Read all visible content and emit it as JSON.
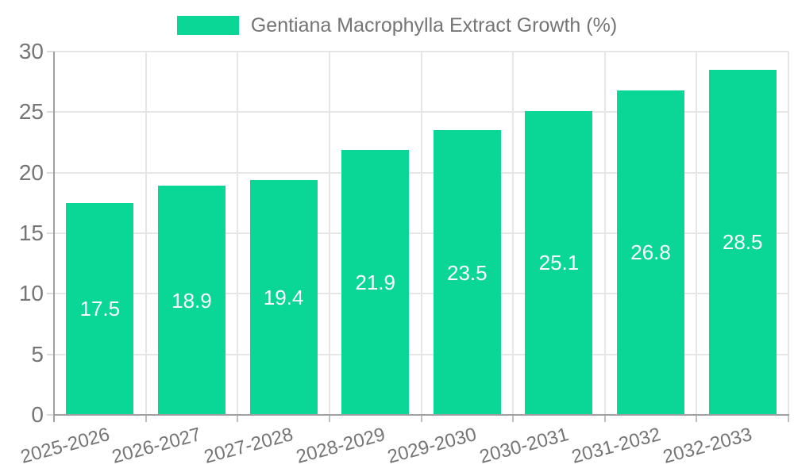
{
  "legend": {
    "label": "Gentiana Macrophylla Extract Growth (%)"
  },
  "colors": {
    "bar": "#0ad796",
    "legend_swatch": "#0ad796",
    "grid": "#e6e6e6",
    "axis": "#a0a0a0",
    "tick_label": "#757575",
    "value_label": "#ffffff",
    "background": "#ffffff"
  },
  "chart_data": {
    "type": "bar",
    "title": "Gentiana Macrophylla Extract Growth (%)",
    "categories": [
      "2025-2026",
      "2026-2027",
      "2027-2028",
      "2028-2029",
      "2029-2030",
      "2030-2031",
      "2031-2032",
      "2032-2033"
    ],
    "values": [
      17.5,
      18.9,
      19.4,
      21.9,
      23.5,
      25.1,
      26.8,
      28.5
    ],
    "xlabel": "",
    "ylabel": "",
    "ylim": [
      0,
      30
    ],
    "yticks": [
      0,
      5,
      10,
      15,
      20,
      25,
      30
    ],
    "grid": true,
    "legend_position": "top-center",
    "value_label_position": "inside-center",
    "x_tick_rotation_deg": -15
  }
}
